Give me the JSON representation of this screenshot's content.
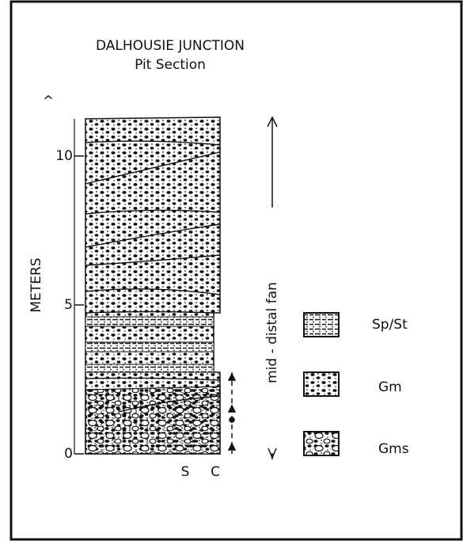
{
  "title": "DALHOUSIE JUNCTION",
  "subtitle": "Pit Section",
  "axis": {
    "label": "METERS",
    "ticks": [
      0,
      5,
      10
    ]
  },
  "column_labels": [
    "S",
    "C"
  ],
  "annotation": "mid - distal fan",
  "legend": [
    {
      "label": "Sp/St"
    },
    {
      "label": "Gm"
    },
    {
      "label": "Gms"
    }
  ]
}
